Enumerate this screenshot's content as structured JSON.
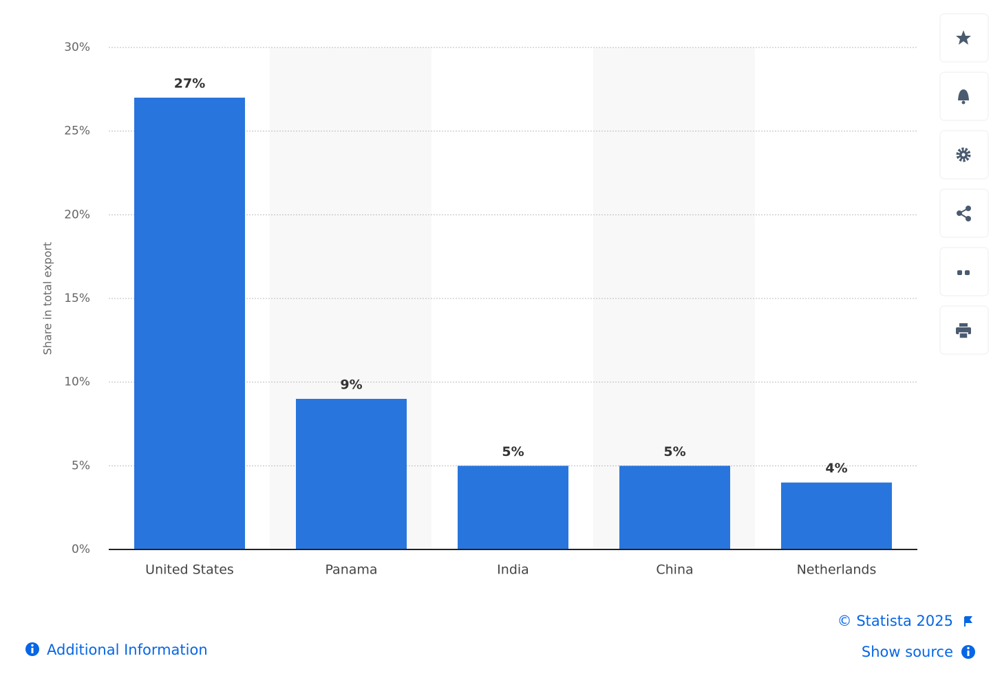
{
  "chart_data": {
    "type": "bar",
    "y_label": "Share in total export",
    "categories": [
      "United States",
      "Panama",
      "India",
      "China",
      "Netherlands"
    ],
    "values": [
      27,
      9,
      5,
      5,
      4
    ],
    "value_labels": [
      "27%",
      "9%",
      "5%",
      "5%",
      "4%"
    ],
    "color": "#2876dd",
    "ylim": [
      0,
      30
    ],
    "yticks": [
      {
        "value": 0,
        "label": "0%"
      },
      {
        "value": 5,
        "label": "5%"
      },
      {
        "value": 10,
        "label": "10%"
      },
      {
        "value": 15,
        "label": "15%"
      },
      {
        "value": 20,
        "label": "20%"
      },
      {
        "value": 25,
        "label": "25%"
      },
      {
        "value": 30,
        "label": "30%"
      }
    ],
    "grid": true
  },
  "footer": {
    "copyright": "© Statista 2025",
    "source": "Show source",
    "info": "Additional Information"
  }
}
